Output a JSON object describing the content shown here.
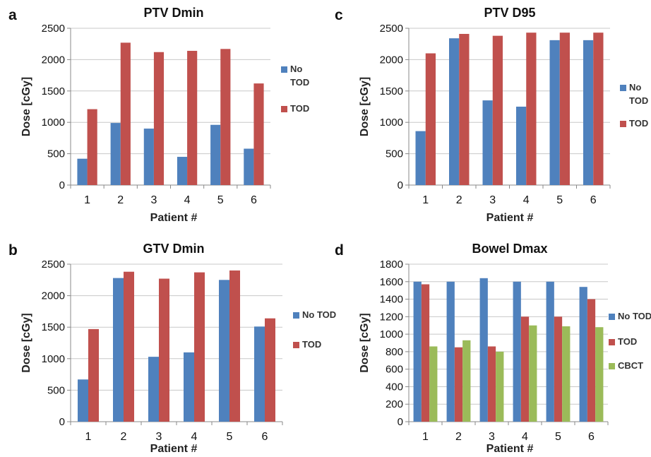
{
  "chart_data": [
    {
      "panel": "a",
      "type": "bar",
      "title": "PTV Dmin",
      "xlabel": "Patient #",
      "ylabel": "Dose [cGy]",
      "categories": [
        "1",
        "2",
        "3",
        "4",
        "5",
        "6"
      ],
      "ylim": [
        0,
        2500
      ],
      "yticks": [
        0,
        500,
        1000,
        1500,
        2000,
        2500
      ],
      "grid": true,
      "legend_position": "right",
      "series": [
        {
          "name": "No TOD",
          "legend_lines": [
            "No",
            "TOD"
          ],
          "color": "#4f81bd",
          "values": [
            420,
            990,
            900,
            450,
            960,
            580
          ]
        },
        {
          "name": "TOD",
          "legend_lines": [
            "TOD"
          ],
          "color": "#c0504d",
          "values": [
            1210,
            2270,
            2120,
            2140,
            2170,
            1620
          ]
        }
      ]
    },
    {
      "panel": "c",
      "type": "bar",
      "title": "PTV D95",
      "xlabel": "Patient #",
      "ylabel": "Dose [cGy]",
      "categories": [
        "1",
        "2",
        "3",
        "4",
        "5",
        "6"
      ],
      "ylim": [
        0,
        2500
      ],
      "yticks": [
        0,
        500,
        1000,
        1500,
        2000,
        2500
      ],
      "grid": true,
      "legend_position": "right",
      "series": [
        {
          "name": "No TOD",
          "legend_lines": [
            "No",
            "TOD"
          ],
          "color": "#4f81bd",
          "values": [
            860,
            2340,
            1350,
            1250,
            2310,
            2310
          ]
        },
        {
          "name": "TOD",
          "legend_lines": [
            "TOD"
          ],
          "color": "#c0504d",
          "values": [
            2100,
            2410,
            2380,
            2430,
            2430,
            2430
          ]
        }
      ]
    },
    {
      "panel": "b",
      "type": "bar",
      "title": "GTV Dmin",
      "xlabel": "Patient #",
      "ylabel": "Dose [cGy]",
      "categories": [
        "1",
        "2",
        "3",
        "4",
        "5",
        "6"
      ],
      "ylim": [
        0,
        2500
      ],
      "yticks": [
        0,
        500,
        1000,
        1500,
        2000,
        2500
      ],
      "grid": true,
      "legend_position": "right",
      "series": [
        {
          "name": "No TOD",
          "legend_lines": [
            "No TOD"
          ],
          "color": "#4f81bd",
          "values": [
            670,
            2280,
            1030,
            1100,
            2250,
            1510
          ]
        },
        {
          "name": "TOD",
          "legend_lines": [
            "TOD"
          ],
          "color": "#c0504d",
          "values": [
            1470,
            2380,
            2270,
            2370,
            2400,
            1640
          ]
        }
      ]
    },
    {
      "panel": "d",
      "type": "bar",
      "title": "Bowel Dmax",
      "xlabel": "Patient #",
      "ylabel": "Dose [cGy]",
      "categories": [
        "1",
        "2",
        "3",
        "4",
        "5",
        "6"
      ],
      "ylim": [
        0,
        1800
      ],
      "yticks": [
        0,
        200,
        400,
        600,
        800,
        1000,
        1200,
        1400,
        1600,
        1800
      ],
      "grid": true,
      "legend_position": "right",
      "series": [
        {
          "name": "No TOD",
          "legend_lines": [
            "No TOD"
          ],
          "color": "#4f81bd",
          "values": [
            1600,
            1600,
            1640,
            1600,
            1600,
            1540
          ]
        },
        {
          "name": "TOD",
          "legend_lines": [
            "TOD"
          ],
          "color": "#c0504d",
          "values": [
            1570,
            850,
            860,
            1200,
            1200,
            1400
          ]
        },
        {
          "name": "CBCT",
          "legend_lines": [
            "CBCT"
          ],
          "color": "#9bbb59",
          "values": [
            860,
            930,
            800,
            1100,
            1090,
            1080
          ]
        }
      ]
    }
  ]
}
